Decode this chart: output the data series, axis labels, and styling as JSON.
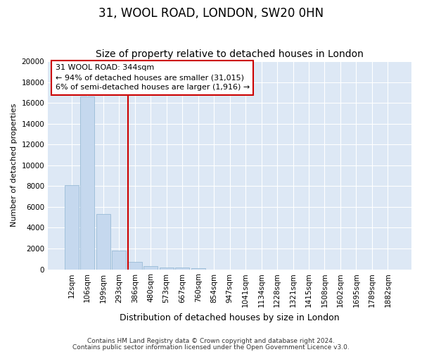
{
  "title": "31, WOOL ROAD, LONDON, SW20 0HN",
  "subtitle": "Size of property relative to detached houses in London",
  "xlabel": "Distribution of detached houses by size in London",
  "ylabel": "Number of detached properties",
  "categories": [
    "12sqm",
    "106sqm",
    "199sqm",
    "293sqm",
    "386sqm",
    "480sqm",
    "573sqm",
    "667sqm",
    "760sqm",
    "854sqm",
    "947sqm",
    "1041sqm",
    "1134sqm",
    "1228sqm",
    "1321sqm",
    "1415sqm",
    "1508sqm",
    "1602sqm",
    "1695sqm",
    "1789sqm",
    "1882sqm"
  ],
  "values": [
    8100,
    16600,
    5300,
    1800,
    700,
    300,
    180,
    150,
    130,
    0,
    0,
    0,
    0,
    0,
    0,
    0,
    0,
    0,
    0,
    0,
    0
  ],
  "bar_color": "#c5d8ee",
  "bar_edge_color": "#9abcd6",
  "vline_color": "#cc0000",
  "annotation_line1": "31 WOOL ROAD: 344sqm",
  "annotation_line2": "← 94% of detached houses are smaller (31,015)",
  "annotation_line3": "6% of semi-detached houses are larger (1,916) →",
  "annotation_box_facecolor": "#ffffff",
  "annotation_box_edgecolor": "#cc0000",
  "ylim": [
    0,
    20000
  ],
  "yticks": [
    0,
    2000,
    4000,
    6000,
    8000,
    10000,
    12000,
    14000,
    16000,
    18000,
    20000
  ],
  "plot_bg_color": "#dde8f5",
  "grid_color": "#ffffff",
  "fig_bg_color": "#ffffff",
  "footer_line1": "Contains HM Land Registry data © Crown copyright and database right 2024.",
  "footer_line2": "Contains public sector information licensed under the Open Government Licence v3.0.",
  "title_fontsize": 12,
  "subtitle_fontsize": 10,
  "xlabel_fontsize": 9,
  "ylabel_fontsize": 8,
  "tick_fontsize": 7.5,
  "footer_fontsize": 6.5,
  "annot_fontsize": 8
}
